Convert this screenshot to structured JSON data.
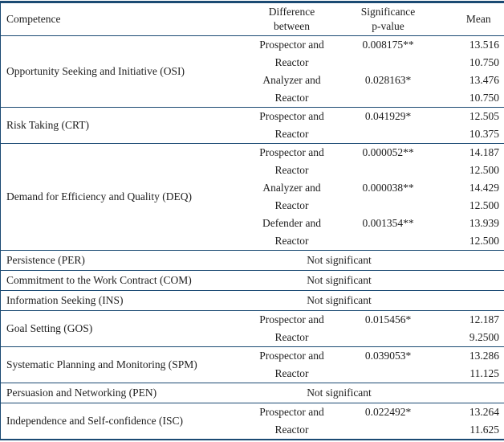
{
  "colors": {
    "line": "#1b4a73",
    "text": "#1d1d1d",
    "background": "#ffffff"
  },
  "table": {
    "headers": {
      "competence": "Competence",
      "difference": "Difference\nbetween",
      "significance": "Significance\np-value",
      "mean": "Mean"
    },
    "not_significant_label": "Not significant",
    "groups": [
      {
        "name": "Opportunity Seeking and Initiative (OSI)",
        "comparisons": [
          {
            "between_line1": "Prospector and",
            "between_line2": "Reactor",
            "p_value": "0.008175**",
            "mean_line1": "13.516",
            "mean_line2": "10.750"
          },
          {
            "between_line1": "Analyzer and",
            "between_line2": "Reactor",
            "p_value": "0.028163*",
            "mean_line1": "13.476",
            "mean_line2": "10.750"
          }
        ]
      },
      {
        "name": "Risk Taking (CRT)",
        "comparisons": [
          {
            "between_line1": "Prospector and",
            "between_line2": "Reactor",
            "p_value": "0.041929*",
            "mean_line1": "12.505",
            "mean_line2": "10.375"
          }
        ]
      },
      {
        "name": "Demand for Efficiency and Quality (DEQ)",
        "comparisons": [
          {
            "between_line1": "Prospector and",
            "between_line2": "Reactor",
            "p_value": "0.000052**",
            "mean_line1": "14.187",
            "mean_line2": "12.500"
          },
          {
            "between_line1": "Analyzer and",
            "between_line2": "Reactor",
            "p_value": "0.000038**",
            "mean_line1": "14.429",
            "mean_line2": "12.500"
          },
          {
            "between_line1": "Defender and",
            "between_line2": "Reactor",
            "p_value": "0.001354**",
            "mean_line1": "13.939",
            "mean_line2": "12.500"
          }
        ]
      },
      {
        "name": "Persistence (PER)",
        "not_significant": true
      },
      {
        "name": "Commitment to the Work Contract (COM)",
        "not_significant": true
      },
      {
        "name": "Information Seeking (INS)",
        "not_significant": true
      },
      {
        "name": "Goal Setting (GOS)",
        "comparisons": [
          {
            "between_line1": "Prospector and",
            "between_line2": "Reactor",
            "p_value": "0.015456*",
            "mean_line1": "12.187",
            "mean_line2": "9.2500"
          }
        ]
      },
      {
        "name": "Systematic Planning and Monitoring (SPM)",
        "comparisons": [
          {
            "between_line1": "Prospector and",
            "between_line2": "Reactor",
            "p_value": "0.039053*",
            "mean_line1": "13.286",
            "mean_line2": "11.125"
          }
        ]
      },
      {
        "name": "Persuasion and Networking (PEN)",
        "not_significant": true
      },
      {
        "name": "Independence and Self-confidence (ISC)",
        "comparisons": [
          {
            "between_line1": "Prospector and",
            "between_line2": "Reactor",
            "p_value": "0.022492*",
            "mean_line1": "13.264",
            "mean_line2": "11.625"
          }
        ]
      }
    ]
  }
}
